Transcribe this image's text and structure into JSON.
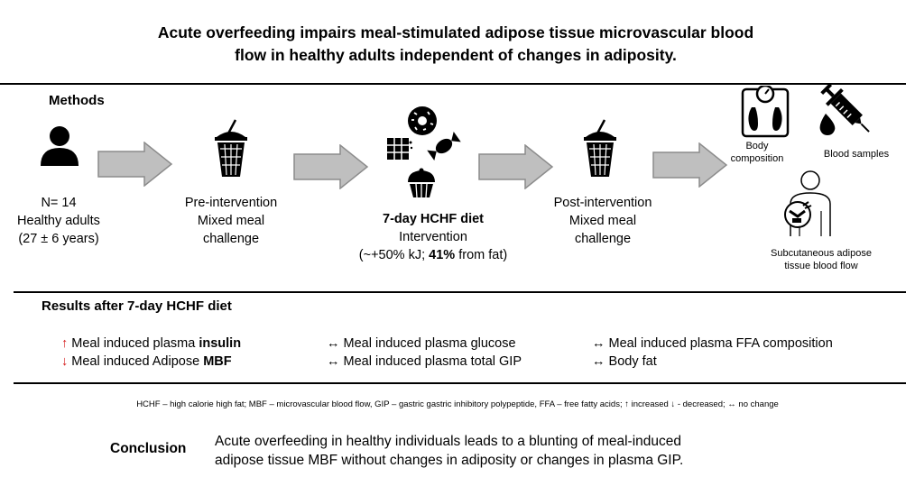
{
  "title_line1": "Acute overfeeding impairs meal-stimulated adipose tissue microvascular blood",
  "title_line2": "flow in healthy adults independent of changes in adiposity.",
  "methods": {
    "heading": "Methods",
    "participants": {
      "line1": "N= 14",
      "line2": "Healthy adults",
      "line3": "(27 ± 6 years)",
      "icon": "person-icon"
    },
    "pre": {
      "line1": "Pre-intervention",
      "line2": "Mixed meal",
      "line3": "challenge",
      "icon": "drink-cup-icon"
    },
    "diet": {
      "line1": "7-day HCHF diet",
      "line2": "Intervention",
      "line3a": "(~+50% kJ; ",
      "line3b": "41%",
      "line3c": " from fat)",
      "icons": [
        "donut-icon",
        "chocolate-icon",
        "candy-icon",
        "cupcake-icon"
      ]
    },
    "post": {
      "line1": "Post-intervention",
      "line2": "Mixed meal",
      "line3": "challenge",
      "icon": "drink-cup-icon"
    },
    "outcomes": {
      "body_comp_line1": "Body",
      "body_comp_line2": "composition",
      "blood": "Blood samples",
      "adipose_line1": "Subcutaneous adipose",
      "adipose_line2": "tissue blood flow"
    }
  },
  "results": {
    "heading": "Results after 7-day HCHF diet",
    "col1": [
      {
        "symbol": "↑",
        "text_pre": "Meal induced plasma ",
        "text_bold": "insulin"
      },
      {
        "symbol": "↓",
        "text_pre": "Meal induced Adipose ",
        "text_bold": "MBF"
      }
    ],
    "col2": [
      {
        "symbol": "↔",
        "text": "Meal induced plasma glucose"
      },
      {
        "symbol": "↔",
        "text": "Meal induced plasma total GIP"
      }
    ],
    "col3": [
      {
        "symbol": "↔",
        "text": "Meal induced plasma FFA composition"
      },
      {
        "symbol": "↔",
        "text": "Body fat"
      }
    ]
  },
  "footnote": "HCHF – high calorie high fat; MBF – microvascular blood flow, GIP – gastric gastric inhibitory polypeptide, FFA – free fatty acids; ↑ increased ↓ - decreased; ↔ no change",
  "conclusion": {
    "heading": "Conclusion",
    "line1": "Acute overfeeding in healthy individuals leads to a blunting of meal-induced",
    "line2": "adipose tissue MBF without changes in adiposity or changes in plasma GIP."
  },
  "colors": {
    "arrow_fill": "#bfbfbf",
    "arrow_stroke": "#8c8c8c",
    "up_down": "#d62020"
  }
}
